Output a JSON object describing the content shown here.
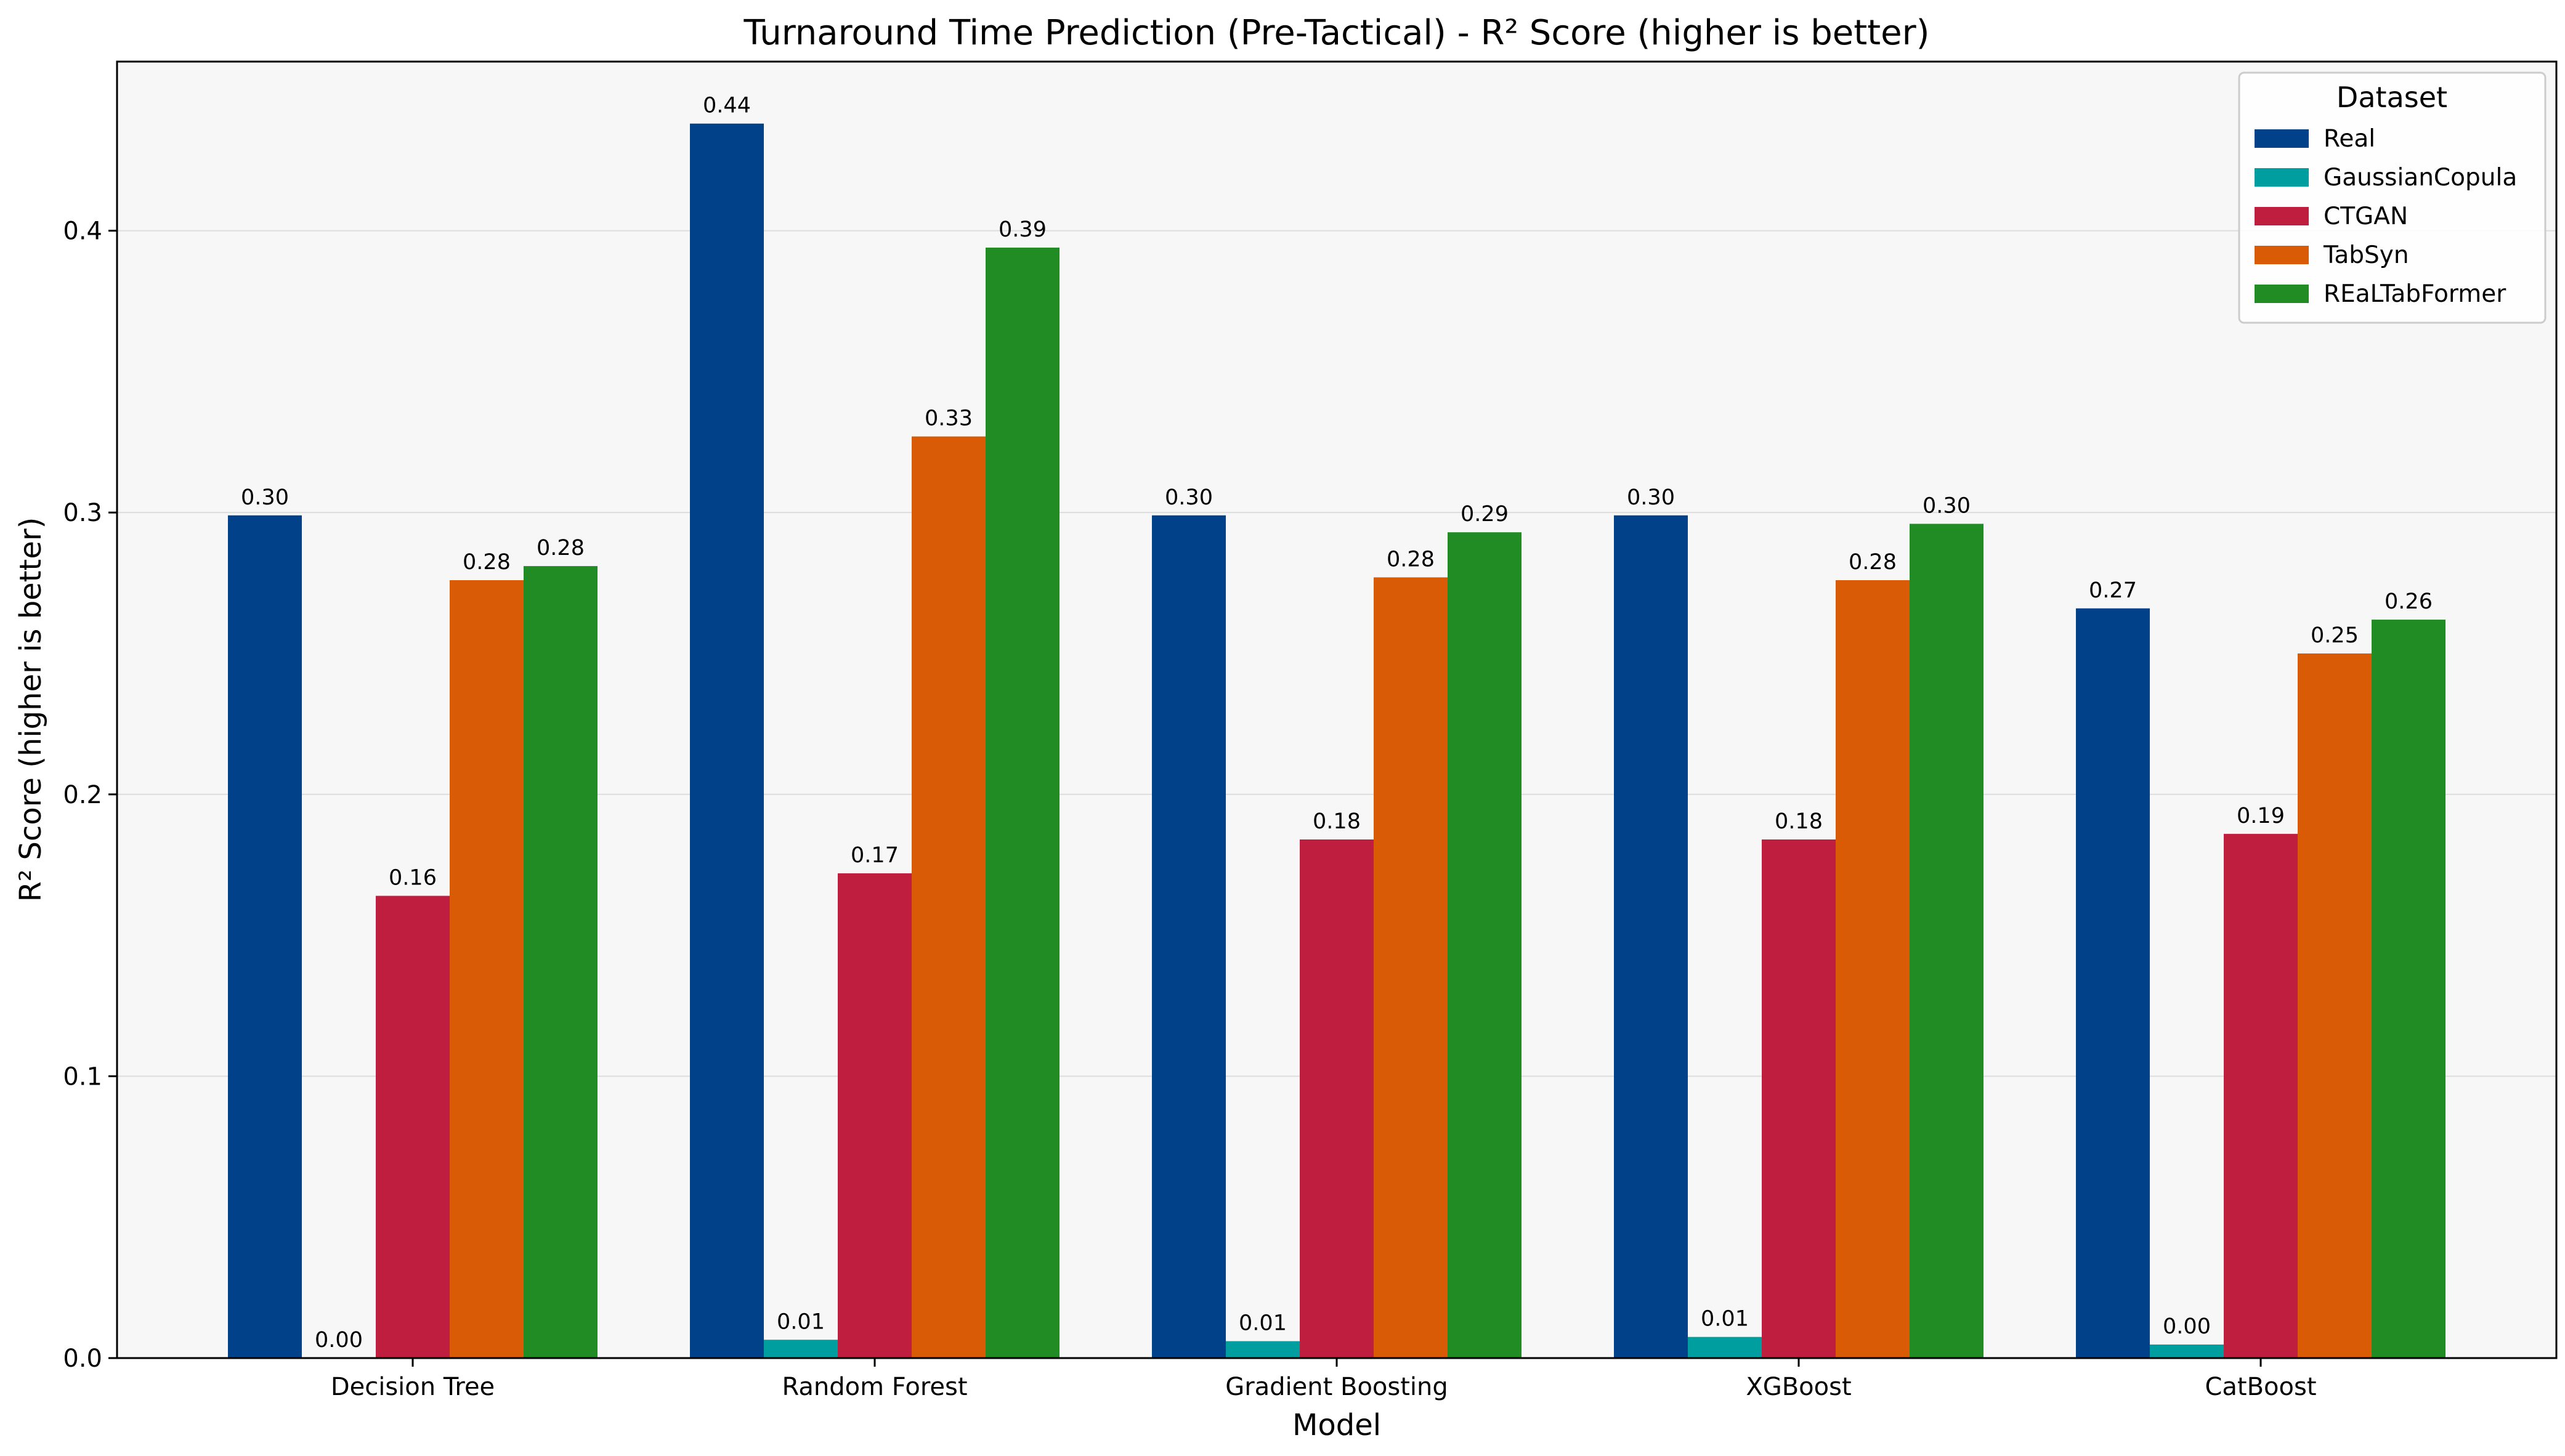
{
  "chart_data": {
    "type": "bar",
    "title": "Turnaround Time Prediction (Pre-Tactical) - R² Score (higher is better)",
    "xlabel": "Model",
    "ylabel": "R² Score (higher is better)",
    "ylim": [
      0,
      0.46
    ],
    "yticks": [
      0.0,
      0.1,
      0.2,
      0.3,
      0.4
    ],
    "ytick_labels": [
      "0.0",
      "0.1",
      "0.2",
      "0.3",
      "0.4"
    ],
    "grid": true,
    "legend_title": "Dataset",
    "legend_position": "top-right",
    "categories": [
      "Decision Tree",
      "Random Forest",
      "Gradient Boosting",
      "XGBoost",
      "CatBoost"
    ],
    "series": [
      {
        "name": "Real",
        "color": "#00418A",
        "values": [
          0.299,
          0.438,
          0.299,
          0.299,
          0.266
        ],
        "labels": [
          "0.30",
          "0.44",
          "0.30",
          "0.30",
          "0.27"
        ]
      },
      {
        "name": "GaussianCopula",
        "color": "#009E9E",
        "values": [
          0.0,
          0.0065,
          0.006,
          0.0075,
          0.0048
        ],
        "labels": [
          "0.00",
          "0.01",
          "0.01",
          "0.01",
          "0.00"
        ]
      },
      {
        "name": "CTGAN",
        "color": "#C01E3F",
        "values": [
          0.164,
          0.172,
          0.184,
          0.184,
          0.186
        ],
        "labels": [
          "0.16",
          "0.17",
          "0.18",
          "0.18",
          "0.19"
        ]
      },
      {
        "name": "TabSyn",
        "color": "#D95B06",
        "values": [
          0.276,
          0.327,
          0.277,
          0.276,
          0.25
        ],
        "labels": [
          "0.28",
          "0.33",
          "0.28",
          "0.28",
          "0.25"
        ]
      },
      {
        "name": "REaLTabFormer",
        "color": "#218C23",
        "values": [
          0.281,
          0.394,
          0.293,
          0.296,
          0.262
        ],
        "labels": [
          "0.28",
          "0.39",
          "0.29",
          "0.30",
          "0.26"
        ]
      }
    ]
  }
}
